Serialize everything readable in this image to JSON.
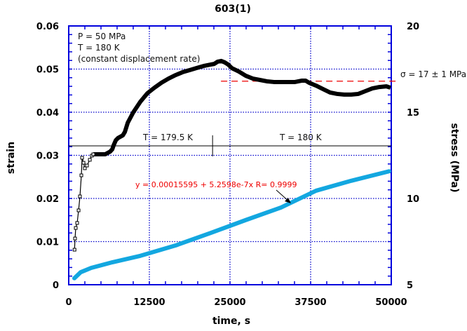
{
  "chart_data": {
    "type": "line",
    "title": "603(1)",
    "xlabel": "time, s",
    "ylabel_left": "strain",
    "ylabel_right": "stress (MPa)",
    "xlim": [
      0,
      50000
    ],
    "ylim_left": [
      0,
      0.06
    ],
    "ylim_right": [
      5,
      20
    ],
    "x_ticks": [
      "0",
      "12500",
      "25000",
      "37500",
      "50000"
    ],
    "y_left_ticks": [
      "0",
      "0.01",
      "0.02",
      "0.03",
      "0.04",
      "0.05",
      "0.06"
    ],
    "y_right_ticks": [
      "5",
      "10",
      "15",
      "20"
    ],
    "grid": true,
    "colors": {
      "axis": "#0000dd",
      "grid": "#0000cc",
      "stress": "#000000",
      "strain": "#13a7e0",
      "annotation_red": "#ee0000"
    },
    "series": [
      {
        "axis": "right",
        "color": "#000000",
        "x": [
          900,
          980,
          1090,
          1310,
          1530,
          1740,
          1960,
          2070,
          2290,
          2500,
          2830,
          3270,
          3590,
          3810,
          4580,
          5660,
          6430,
          6750,
          6970,
          7300,
          7630,
          8390,
          8710,
          9150,
          10020,
          11110,
          12200,
          13290,
          14380,
          15470,
          16560,
          17650,
          18740,
          19820,
          20910,
          22000,
          22550,
          23090,
          23640,
          24180,
          24730,
          25270,
          26360,
          27450,
          28540,
          29630,
          30720,
          31810,
          32900,
          33990,
          35070,
          36160,
          36710,
          37250,
          38340,
          39430,
          40520,
          41610,
          42700,
          43790,
          44880,
          45970,
          47060,
          48150,
          49240,
          49890
        ],
        "y": [
          7.03,
          7.68,
          8.29,
          8.58,
          9.31,
          10.12,
          11.34,
          12.36,
          12.07,
          11.75,
          11.91,
          12.24,
          12.48,
          12.56,
          12.56,
          12.56,
          12.72,
          12.85,
          13.09,
          13.37,
          13.5,
          13.66,
          13.86,
          14.39,
          15.0,
          15.61,
          16.1,
          16.42,
          16.71,
          16.95,
          17.15,
          17.32,
          17.44,
          17.56,
          17.68,
          17.76,
          17.8,
          17.93,
          17.97,
          17.89,
          17.76,
          17.56,
          17.36,
          17.11,
          16.95,
          16.87,
          16.79,
          16.75,
          16.75,
          16.75,
          16.75,
          16.83,
          16.83,
          16.71,
          16.54,
          16.34,
          16.14,
          16.06,
          16.02,
          16.02,
          16.06,
          16.22,
          16.38,
          16.46,
          16.5,
          16.42
        ],
        "open_markers_until": 4000
      },
      {
        "axis": "left",
        "color": "#13a7e0",
        "x": [
          870,
          1850,
          3490,
          6750,
          11110,
          16560,
          22000,
          27450,
          32900,
          38340,
          43790,
          49670
        ],
        "y": [
          0.0015,
          0.0029,
          0.0039,
          0.0052,
          0.0067,
          0.0091,
          0.012,
          0.015,
          0.0179,
          0.0218,
          0.0241,
          0.0263
        ]
      }
    ],
    "annotations": {
      "conditions": [
        "P = 50 MPa",
        "T = 180 K",
        "(constant displacement rate)"
      ],
      "temp_before": "T = 179.5 K",
      "temp_after": "T = 180 K",
      "temp_line_strain": 0.0322,
      "temp_change_time": 22300,
      "sigma_label": "σ = 17 ± 1 MPa",
      "sigma_level_mpa": 16.8,
      "sigma_line_start_time": 23600,
      "fit_label": "y = 0.00015595 + 5.2598e-7x   R= 0.9999"
    }
  }
}
